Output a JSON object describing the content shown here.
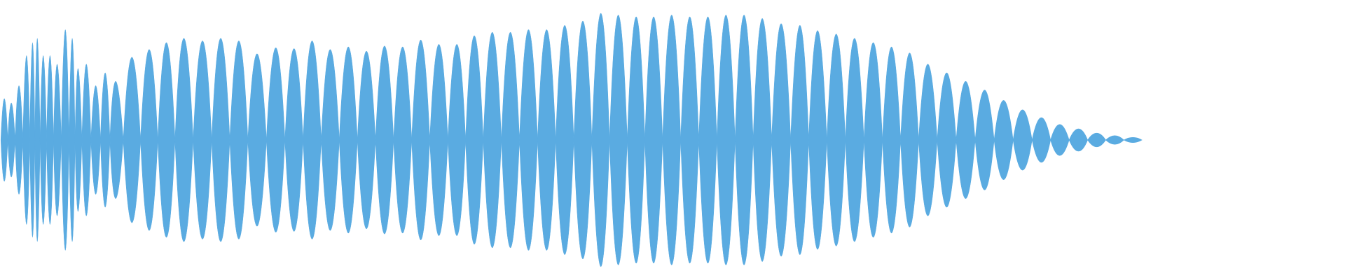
{
  "chart_data": {
    "type": "waveform",
    "xlim": [
      0,
      1560
    ],
    "ylim": [
      -162.5,
      162.5
    ],
    "x": [
      5,
      13,
      22,
      31,
      38,
      43,
      50,
      58,
      66,
      76,
      84,
      90,
      100,
      111,
      122,
      133,
      153,
      173,
      193,
      213,
      235,
      256,
      277,
      298,
      320,
      341,
      362,
      383,
      404,
      425,
      446,
      467,
      488,
      509,
      530,
      550,
      571,
      592,
      613,
      634,
      655,
      676,
      697,
      717,
      738,
      758,
      779,
      800,
      821,
      842,
      863,
      884,
      906,
      928,
      948,
      970,
      991,
      1013,
      1034,
      1055,
      1076,
      1098,
      1120,
      1142,
      1164,
      1186,
      1208,
      1229,
      1251,
      1272,
      1293,
      1314
    ],
    "series": [
      {
        "color": "#5aabe1",
        "values": [
          48,
          43,
          63,
          98,
          113,
          118,
          98,
          98,
          88,
          128,
          118,
          83,
          88,
          63,
          78,
          68,
          96,
          105,
          113,
          118,
          115,
          118,
          115,
          100,
          107,
          106,
          115,
          105,
          108,
          103,
          109,
          108,
          116,
          111,
          111,
          121,
          125,
          125,
          128,
          128,
          133,
          138,
          147,
          145,
          143,
          143,
          145,
          143,
          143,
          145,
          145,
          141,
          135,
          133,
          127,
          123,
          118,
          113,
          108,
          101,
          88,
          78,
          68,
          58,
          46,
          35,
          26,
          18,
          13,
          8,
          5,
          3
        ]
      }
    ]
  }
}
